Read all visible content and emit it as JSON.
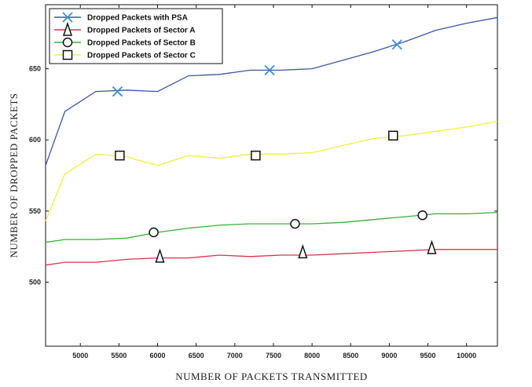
{
  "chart_data": {
    "type": "line",
    "title": "",
    "xlabel": "NUMBER  OF  PACKETS  TRANSMITTED",
    "ylabel": "NUMBER  OF  DROPPED  PACKETS",
    "xlim": [
      4550,
      10400
    ],
    "ylim": [
      455,
      695
    ],
    "xticks": [
      5000,
      5500,
      6000,
      6500,
      7000,
      7500,
      8000,
      8500,
      9000,
      9500,
      10000
    ],
    "yticks": [
      500,
      550,
      600,
      650
    ],
    "legend_position": "top-left",
    "series": [
      {
        "name": "Dropped Packets  with PSA",
        "color": "#3a55a8",
        "marker_color": "#3a8fd6",
        "marker": "x",
        "x": [
          4550,
          4800,
          5200,
          5600,
          6000,
          6400,
          6800,
          7200,
          7600,
          8000,
          8400,
          8800,
          9200,
          9600,
          10000,
          10400
        ],
        "y": [
          582,
          620,
          634,
          635,
          634,
          645,
          646,
          649,
          649,
          650,
          656,
          662,
          669,
          677,
          682,
          686
        ],
        "marker_points": [
          [
            5480,
            634
          ],
          [
            7450,
            649
          ],
          [
            9100,
            667
          ]
        ]
      },
      {
        "name": "Dropped Packets  of  Sector A",
        "color": "#e0304a",
        "marker_color": "#111111",
        "marker": "triangle",
        "x": [
          4550,
          4800,
          5200,
          5600,
          6000,
          6400,
          6800,
          7200,
          7600,
          8000,
          8400,
          8800,
          9200,
          9600,
          10000,
          10400
        ],
        "y": [
          512,
          514,
          514,
          516,
          517,
          517,
          519,
          518,
          519,
          519,
          520,
          521,
          522,
          523,
          523,
          523
        ],
        "marker_points": [
          [
            6030,
            518
          ],
          [
            7880,
            521
          ],
          [
            9550,
            524
          ]
        ]
      },
      {
        "name": "Dropped Packets  of  Sector B",
        "color": "#33b233",
        "marker_color": "#111111",
        "marker": "circle",
        "x": [
          4550,
          4800,
          5200,
          5600,
          6000,
          6400,
          6800,
          7200,
          7600,
          8000,
          8400,
          8800,
          9200,
          9600,
          10000,
          10400
        ],
        "y": [
          528,
          530,
          530,
          531,
          535,
          538,
          540,
          541,
          541,
          541,
          542,
          544,
          546,
          548,
          548,
          549
        ],
        "marker_points": [
          [
            5950,
            535
          ],
          [
            7780,
            541
          ],
          [
            9430,
            547
          ]
        ]
      },
      {
        "name": "Dropped Packets  of  Sector C",
        "color": "#f0ee3c",
        "marker_color": "#111111",
        "marker": "square",
        "x": [
          4550,
          4800,
          5200,
          5600,
          6000,
          6400,
          6800,
          7200,
          7600,
          8000,
          8400,
          8800,
          9200,
          9600,
          10000,
          10400
        ],
        "y": [
          543,
          576,
          590,
          588,
          582,
          589,
          587,
          590,
          590,
          591,
          596,
          601,
          603,
          606,
          609,
          613
        ],
        "marker_points": [
          [
            5510,
            589
          ],
          [
            7270,
            589
          ],
          [
            9050,
            603
          ]
        ]
      }
    ]
  }
}
